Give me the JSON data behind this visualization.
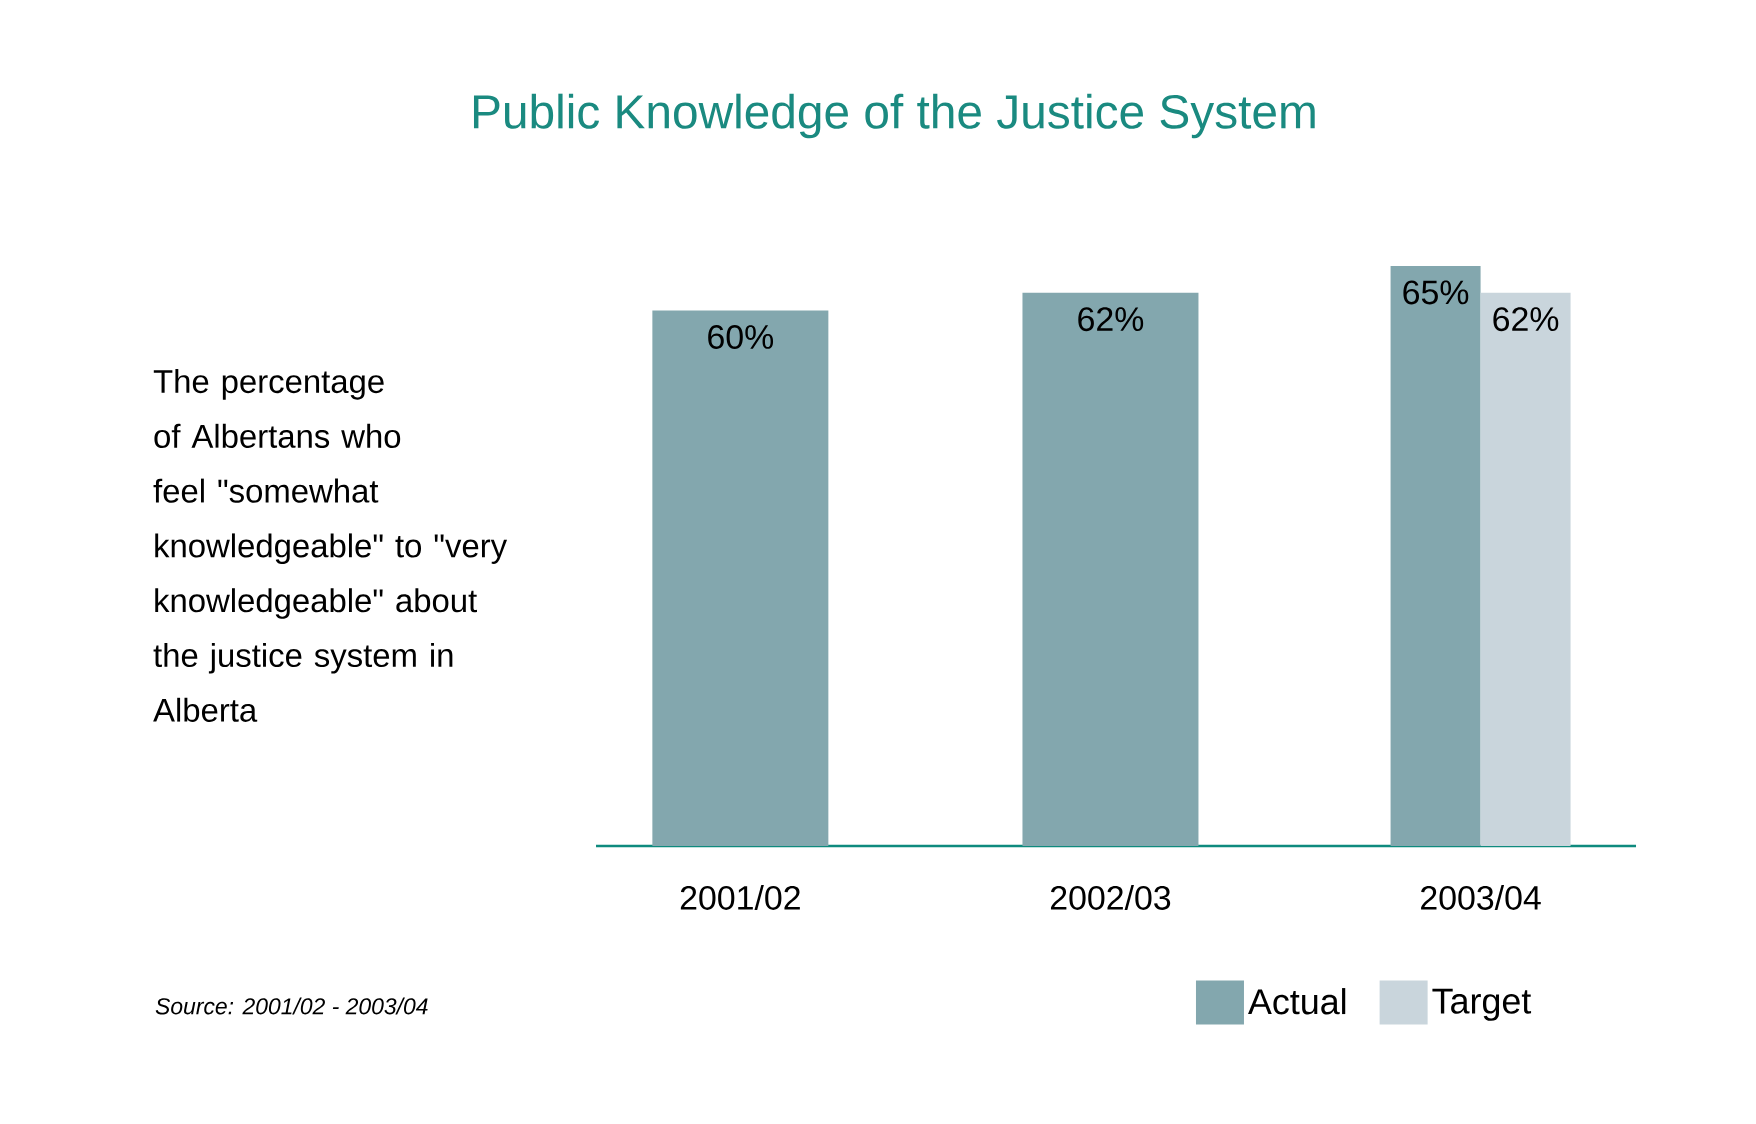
{
  "chart_data": {
    "type": "bar",
    "title": "Public Knowledge of the Justice System",
    "categories": [
      "2001/02",
      "2002/03",
      "2003/04"
    ],
    "series": [
      {
        "name": "Actual",
        "color": "#83a7ae",
        "values": [
          60,
          62,
          65
        ],
        "value_labels": [
          "60%",
          "62%",
          "65%"
        ]
      },
      {
        "name": "Target",
        "color": "#c9d5dc",
        "values": [
          null,
          null,
          62
        ],
        "value_labels": [
          null,
          null,
          "62%"
        ]
      }
    ],
    "tick_labels": "x",
    "legend": "bottom right",
    "annotations": [
      "The percentage of Albertans who feel \"somewhat knowledgeable\" to \"very knowledgeable\" about the justice system in Alberta",
      "Source:  2001/02 - 2003/04"
    ]
  }
}
